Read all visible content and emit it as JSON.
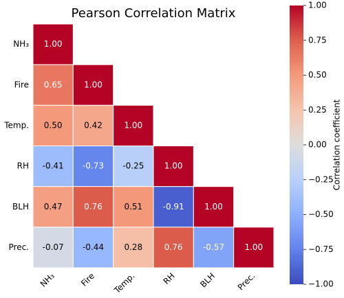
{
  "chart_data": {
    "type": "heatmap",
    "title": "Pearson Correlation Matrix",
    "categories": [
      "NH₃",
      "Fire",
      "Temp.",
      "RH",
      "BLH",
      "Prec."
    ],
    "values": [
      [
        1.0,
        null,
        null,
        null,
        null,
        null
      ],
      [
        0.65,
        1.0,
        null,
        null,
        null,
        null
      ],
      [
        0.5,
        0.42,
        1.0,
        null,
        null,
        null
      ],
      [
        -0.41,
        -0.73,
        -0.25,
        1.0,
        null,
        null
      ],
      [
        0.47,
        0.76,
        0.51,
        -0.91,
        1.0,
        null
      ],
      [
        -0.07,
        -0.44,
        0.28,
        0.76,
        -0.57,
        1.0
      ]
    ],
    "value_labels": [
      [
        "1.00",
        null,
        null,
        null,
        null,
        null
      ],
      [
        "0.65",
        "1.00",
        null,
        null,
        null,
        null
      ],
      [
        "0.50",
        "0.42",
        "1.00",
        null,
        null,
        null
      ],
      [
        "-0.41",
        "-0.73",
        "-0.25",
        "1.00",
        null,
        null
      ],
      [
        "0.47",
        "0.76",
        "0.51",
        "-0.91",
        "1.00",
        null
      ],
      [
        "-0.07",
        "-0.44",
        "0.28",
        "0.76",
        "-0.57",
        "1.00"
      ]
    ],
    "cmap": "coolwarm",
    "clim": [
      -1,
      1
    ],
    "colorbar_label": "Correlation coefficient",
    "colorbar_ticks": [
      {
        "value": -1,
        "label": "−1.00"
      },
      {
        "value": -0.75,
        "label": "−0.75"
      },
      {
        "value": -0.5,
        "label": "−0.50"
      },
      {
        "value": -0.25,
        "label": "−0.25"
      },
      {
        "value": 0,
        "label": "0.00"
      },
      {
        "value": 0.25,
        "label": "0.25"
      },
      {
        "value": 0.5,
        "label": "0.50"
      },
      {
        "value": 0.75,
        "label": "0.75"
      },
      {
        "value": 1,
        "label": "1.00"
      }
    ]
  }
}
